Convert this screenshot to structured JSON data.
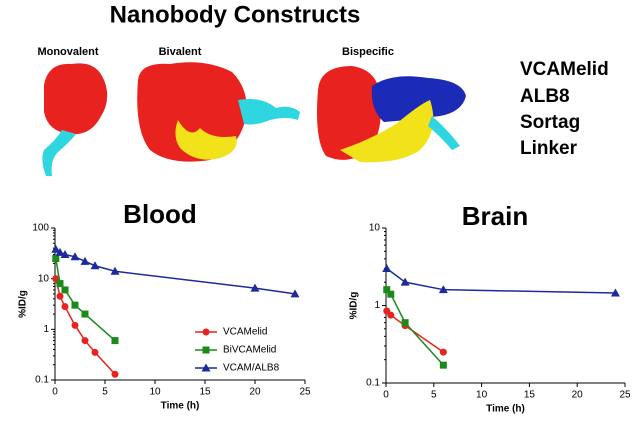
{
  "header": {
    "title": "Nanobody Constructs"
  },
  "constructs": [
    "Monovalent",
    "Bivalent",
    "Bispecific"
  ],
  "domains": [
    {
      "label": "VCAMelid",
      "color": "#e8221e"
    },
    {
      "label": "ALB8",
      "color": "#1f5fb4"
    },
    {
      "label": "Sortag",
      "color": "#2fd6e0"
    },
    {
      "label": "Linker",
      "color": "#f2e21a"
    }
  ],
  "chart_data": [
    {
      "type": "line",
      "title": "Blood",
      "x_label": "Time (h)",
      "y_label": "%ID/g",
      "xlim": [
        0,
        25
      ],
      "xticks": [
        0,
        5,
        10,
        15,
        20,
        25
      ],
      "ylim": [
        0.1,
        100
      ],
      "yticks": [
        0.1,
        1,
        10,
        100
      ],
      "y_scale": "log",
      "legend": "lower right",
      "series": [
        {
          "name": "VCAMelid",
          "color": "#e8221e",
          "marker": "circle",
          "x": [
            0.08,
            0.5,
            1,
            2,
            3,
            4,
            6
          ],
          "values": [
            10,
            4.5,
            2.8,
            1.2,
            0.6,
            0.35,
            0.13
          ]
        },
        {
          "name": "BiVCAMelid",
          "color": "#1a8a1a",
          "marker": "square",
          "x": [
            0.08,
            0.5,
            1,
            2,
            3,
            6
          ],
          "values": [
            25,
            8,
            6,
            3,
            2,
            0.6
          ]
        },
        {
          "name": "VCAM/ALB8",
          "color": "#1c2a9c",
          "marker": "triangle",
          "x": [
            0.08,
            0.5,
            1,
            2,
            3,
            4,
            6,
            20,
            24
          ],
          "values": [
            38,
            33,
            30,
            27,
            22,
            18,
            14,
            6.5,
            5
          ]
        }
      ]
    },
    {
      "type": "line",
      "title": "Brain",
      "x_label": "Time (h)",
      "y_label": "%ID/g",
      "xlim": [
        0,
        25
      ],
      "xticks": [
        0,
        5,
        10,
        15,
        20,
        25
      ],
      "ylim": [
        0.1,
        10
      ],
      "yticks": [
        0.1,
        1,
        10
      ],
      "y_scale": "log",
      "series": [
        {
          "color": "#e8221e",
          "marker": "circle",
          "x": [
            0.08,
            0.5,
            2,
            6
          ],
          "values": [
            0.85,
            0.75,
            0.55,
            0.25
          ]
        },
        {
          "color": "#1a8a1a",
          "marker": "square",
          "x": [
            0.08,
            0.5,
            2,
            6
          ],
          "values": [
            1.6,
            1.4,
            0.6,
            0.17
          ]
        },
        {
          "color": "#1c2a9c",
          "marker": "triangle",
          "x": [
            0.08,
            2,
            6,
            24
          ],
          "values": [
            3,
            2,
            1.6,
            1.45
          ]
        }
      ]
    }
  ]
}
